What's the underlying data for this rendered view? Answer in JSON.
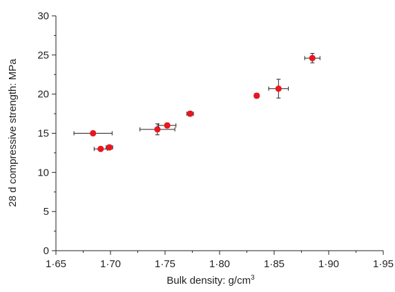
{
  "chart_data": {
    "type": "scatter",
    "xlabel": "Bulk density: g/cm",
    "xlabel_sup": "3",
    "ylabel": "28 d compressive strength: MPa",
    "xlim": [
      1.65,
      1.95
    ],
    "ylim": [
      0,
      30
    ],
    "x_ticks": [
      1.65,
      1.7,
      1.75,
      1.8,
      1.85,
      1.9,
      1.95
    ],
    "x_tick_labels": [
      "1·65",
      "1·70",
      "1·75",
      "1·80",
      "1·85",
      "1·90",
      "1·95"
    ],
    "y_ticks": [
      0,
      5,
      10,
      15,
      20,
      25,
      30
    ],
    "y_tick_labels": [
      "0",
      "5",
      "10",
      "15",
      "20",
      "25",
      "30"
    ],
    "grid": false,
    "marker_color": "#e8171f",
    "errorbar_color": "#231f20",
    "points": [
      {
        "x": 1.684,
        "y": 15.0,
        "xerr": 0.0175,
        "yerr": 0.0
      },
      {
        "x": 1.691,
        "y": 13.0,
        "xerr": 0.006,
        "yerr": 0.2
      },
      {
        "x": 1.699,
        "y": 13.2,
        "xerr": 0.003,
        "yerr": 0.3
      },
      {
        "x": 1.743,
        "y": 15.5,
        "xerr": 0.016,
        "yerr": 0.7
      },
      {
        "x": 1.752,
        "y": 16.0,
        "xerr": 0.008,
        "yerr": 0.3
      },
      {
        "x": 1.773,
        "y": 17.5,
        "xerr": 0.003,
        "yerr": 0.3
      },
      {
        "x": 1.834,
        "y": 19.8,
        "xerr": 0.002,
        "yerr": 0.3
      },
      {
        "x": 1.854,
        "y": 20.7,
        "xerr": 0.009,
        "yerr": 1.2
      },
      {
        "x": 1.885,
        "y": 24.6,
        "xerr": 0.007,
        "yerr": 0.6
      }
    ]
  }
}
